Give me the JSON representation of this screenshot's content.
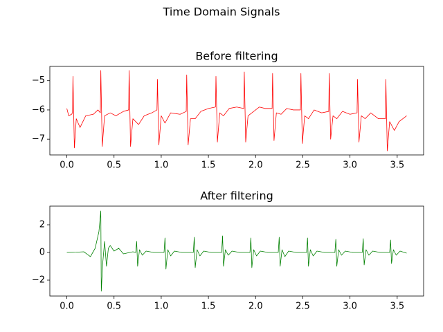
{
  "title": "Time Domain Signals",
  "chart_data": [
    {
      "type": "line",
      "title": "Before filtering",
      "color": "#ff0000",
      "xlim": [
        -0.18,
        3.78
      ],
      "ylim": [
        -7.54,
        -4.51
      ],
      "xticks": [
        {
          "value": 0,
          "label": "0.0"
        },
        {
          "value": 0.5,
          "label": "0.5"
        },
        {
          "value": 1,
          "label": "1.0"
        },
        {
          "value": 1.5,
          "label": "1.5"
        },
        {
          "value": 2,
          "label": "2.0"
        },
        {
          "value": 2.5,
          "label": "2.5"
        },
        {
          "value": 3,
          "label": "3.0"
        },
        {
          "value": 3.5,
          "label": "3.5"
        }
      ],
      "yticks": [
        {
          "value": -7,
          "label": "−7"
        },
        {
          "value": -6,
          "label": "−6"
        },
        {
          "value": -5,
          "label": "−5"
        }
      ],
      "x": [
        0,
        0.02,
        0.05,
        0.06,
        0.065,
        0.08,
        0.1,
        0.14,
        0.2,
        0.28,
        0.33,
        0.355,
        0.36,
        0.375,
        0.4,
        0.46,
        0.52,
        0.6,
        0.655,
        0.66,
        0.675,
        0.7,
        0.76,
        0.82,
        0.9,
        0.955,
        0.96,
        0.975,
        1.0,
        1.04,
        1.1,
        1.2,
        1.265,
        1.27,
        1.285,
        1.31,
        1.36,
        1.42,
        1.5,
        1.575,
        1.58,
        1.595,
        1.62,
        1.66,
        1.72,
        1.8,
        1.875,
        1.88,
        1.895,
        1.92,
        1.96,
        2.04,
        2.1,
        2.175,
        2.18,
        2.195,
        2.22,
        2.27,
        2.33,
        2.4,
        2.475,
        2.48,
        2.495,
        2.52,
        2.56,
        2.62,
        2.7,
        2.775,
        2.78,
        2.795,
        2.82,
        2.86,
        2.92,
        3.0,
        3.075,
        3.08,
        3.095,
        3.12,
        3.16,
        3.22,
        3.3,
        3.375,
        3.38,
        3.395,
        3.42,
        3.47,
        3.52,
        3.6
      ],
      "values": [
        -5.95,
        -6.2,
        -6.15,
        -6.1,
        -4.85,
        -7.3,
        -6.3,
        -6.6,
        -6.2,
        -6.15,
        -6.0,
        -6.1,
        -4.65,
        -7.25,
        -6.2,
        -6.1,
        -6.2,
        -6.05,
        -6.0,
        -4.65,
        -7.25,
        -6.3,
        -6.5,
        -6.2,
        -6.1,
        -6.0,
        -4.95,
        -7.2,
        -6.2,
        -6.45,
        -6.1,
        -6.15,
        -6.05,
        -4.8,
        -7.2,
        -6.3,
        -6.3,
        -6.05,
        -5.95,
        -5.9,
        -4.85,
        -7.1,
        -6.1,
        -6.2,
        -5.95,
        -5.9,
        -5.95,
        -4.7,
        -7.1,
        -6.2,
        -6.1,
        -5.9,
        -5.95,
        -5.95,
        -4.75,
        -7.05,
        -6.1,
        -6.15,
        -5.95,
        -6.0,
        -6.0,
        -4.75,
        -7.15,
        -6.2,
        -6.3,
        -6.0,
        -6.1,
        -6.05,
        -4.75,
        -7.0,
        -6.2,
        -6.3,
        -6.05,
        -6.15,
        -6.1,
        -4.95,
        -7.1,
        -6.2,
        -6.3,
        -6.1,
        -6.3,
        -6.3,
        -4.95,
        -7.4,
        -6.4,
        -6.7,
        -6.4,
        -6.2
      ]
    },
    {
      "type": "line",
      "title": "After filtering",
      "color": "#008000",
      "xlim": [
        -0.18,
        3.78
      ],
      "ylim": [
        -3.15,
        3.35
      ],
      "xticks": [
        {
          "value": 0,
          "label": "0.0"
        },
        {
          "value": 0.5,
          "label": "0.5"
        },
        {
          "value": 1,
          "label": "1.0"
        },
        {
          "value": 1.5,
          "label": "1.5"
        },
        {
          "value": 2,
          "label": "2.0"
        },
        {
          "value": 2.5,
          "label": "2.5"
        },
        {
          "value": 3,
          "label": "3.0"
        },
        {
          "value": 3.5,
          "label": "3.5"
        }
      ],
      "yticks": [
        {
          "value": -2,
          "label": "−2"
        },
        0,
        2
      ],
      "x": [
        0,
        0.1,
        0.18,
        0.25,
        0.3,
        0.34,
        0.36,
        0.365,
        0.38,
        0.4,
        0.42,
        0.44,
        0.46,
        0.5,
        0.55,
        0.6,
        0.7,
        0.73,
        0.74,
        0.75,
        0.77,
        0.8,
        0.84,
        0.92,
        1.03,
        1.04,
        1.05,
        1.07,
        1.1,
        1.14,
        1.22,
        1.34,
        1.35,
        1.36,
        1.38,
        1.41,
        1.45,
        1.53,
        1.64,
        1.65,
        1.66,
        1.68,
        1.71,
        1.75,
        1.83,
        1.94,
        1.95,
        1.96,
        1.98,
        2.01,
        2.05,
        2.13,
        2.24,
        2.25,
        2.26,
        2.28,
        2.31,
        2.35,
        2.43,
        2.54,
        2.55,
        2.56,
        2.58,
        2.61,
        2.65,
        2.73,
        2.84,
        2.85,
        2.86,
        2.88,
        2.91,
        2.95,
        3.03,
        3.13,
        3.14,
        3.15,
        3.17,
        3.2,
        3.24,
        3.32,
        3.42,
        3.43,
        3.44,
        3.46,
        3.49,
        3.53,
        3.6
      ],
      "values": [
        0,
        0.02,
        0.05,
        -0.3,
        0.3,
        1.5,
        3.0,
        -2.8,
        -0.8,
        0.8,
        -1.0,
        0.3,
        0.5,
        0.1,
        0.3,
        -0.1,
        0.05,
        0,
        0.8,
        -1.0,
        0.2,
        -0.2,
        0.1,
        0,
        0,
        1.05,
        -1.2,
        0.2,
        -0.25,
        0.1,
        0,
        0,
        1.1,
        -1.1,
        0.2,
        -0.25,
        0.1,
        0,
        0,
        1.2,
        -1.0,
        0.2,
        -0.2,
        0.1,
        0,
        0,
        1.05,
        -1.1,
        0.2,
        -0.25,
        0.1,
        0,
        0,
        1.1,
        -1.0,
        0.2,
        -0.3,
        0.1,
        0,
        0,
        1.05,
        -1.0,
        0.2,
        -0.25,
        0.1,
        0,
        0,
        0.95,
        -1.0,
        0.2,
        -0.2,
        0.1,
        0,
        0,
        1.0,
        -0.9,
        0.2,
        -0.2,
        0.1,
        0,
        0,
        0.9,
        -0.8,
        0.2,
        -0.2,
        0.1,
        -0.05
      ]
    }
  ]
}
